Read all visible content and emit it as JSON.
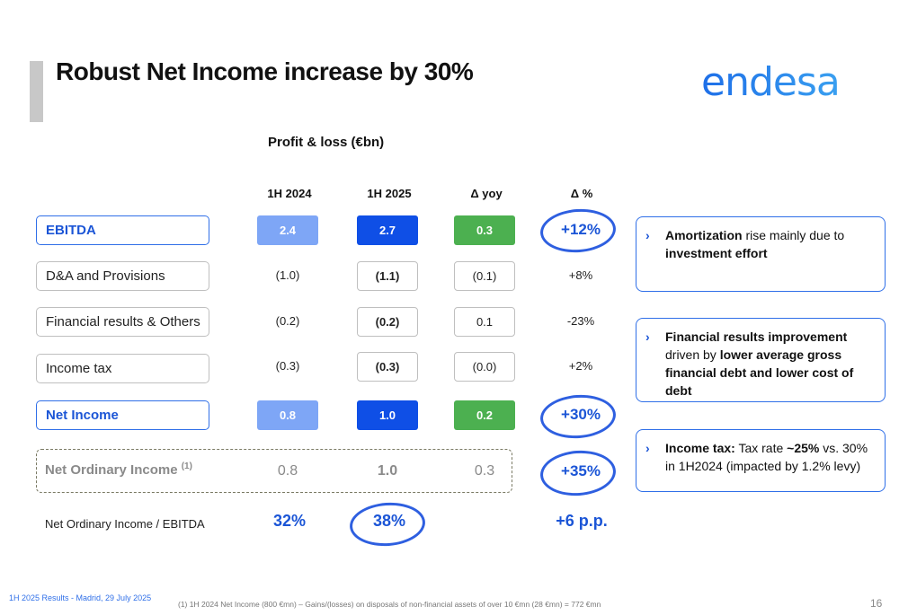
{
  "title": "Robust Net Income increase by 30%",
  "logo_text": "endesa",
  "subtitle": "Profit & loss (€bn)",
  "columns": [
    "1H 2024",
    "1H 2025",
    "Δ yoy",
    "Δ %"
  ],
  "rows": [
    {
      "label": "EBITDA",
      "v2024": "2.4",
      "v2025": "2.7",
      "yoy": "0.3",
      "pct": "+12%"
    },
    {
      "label": "D&A and Provisions",
      "v2024": "(1.0)",
      "v2025": "(1.1)",
      "yoy": "(0.1)",
      "pct": "+8%"
    },
    {
      "label": "Financial results & Others",
      "v2024": "(0.2)",
      "v2025": "(0.2)",
      "yoy": "0.1",
      "pct": "-23%"
    },
    {
      "label": "Income tax",
      "v2024": "(0.3)",
      "v2025": "(0.3)",
      "yoy": "(0.0)",
      "pct": "+2%"
    },
    {
      "label": "Net Income",
      "v2024": "0.8",
      "v2025": "1.0",
      "yoy": "0.2",
      "pct": "+30%"
    }
  ],
  "ordinary": {
    "label": "Net Ordinary Income",
    "sup": "(1)",
    "v2024": "0.8",
    "v2025": "1.0",
    "yoy": "0.3",
    "pct": "+35%"
  },
  "ratio": {
    "label": "Net Ordinary Income / EBITDA",
    "v2024": "32%",
    "v2025": "38%",
    "pct": "+6 p.p."
  },
  "notes": [
    {
      "b1": "Amortization",
      "t1": " rise mainly due to ",
      "b2": "investment effort",
      "t2": ""
    },
    {
      "b1": "Financial results improvement",
      "t1": " driven by ",
      "b2": "lower average gross financial debt and lower cost of debt",
      "t2": ""
    },
    {
      "b1": "Income tax:",
      "t1": " Tax rate ",
      "b2": "~25%",
      "t2": " vs. 30% in 1H2024 (impacted by 1.2% levy)"
    }
  ],
  "chevron": "›",
  "footer": "1H 2025 Results - Madrid, 29 July 2025",
  "footnote": "(1)    1H 2024 Net Income (800 €mn) – Gains/(losses) on disposals of non-financial assets of over 10 €mn (28 €mn) = 772  €mn",
  "page_number": "16",
  "colors": {
    "accent": "#1b55d6",
    "dark_bar": "#0f4fe6",
    "light_bar": "#7ea6f6",
    "green": "#4cb050"
  }
}
